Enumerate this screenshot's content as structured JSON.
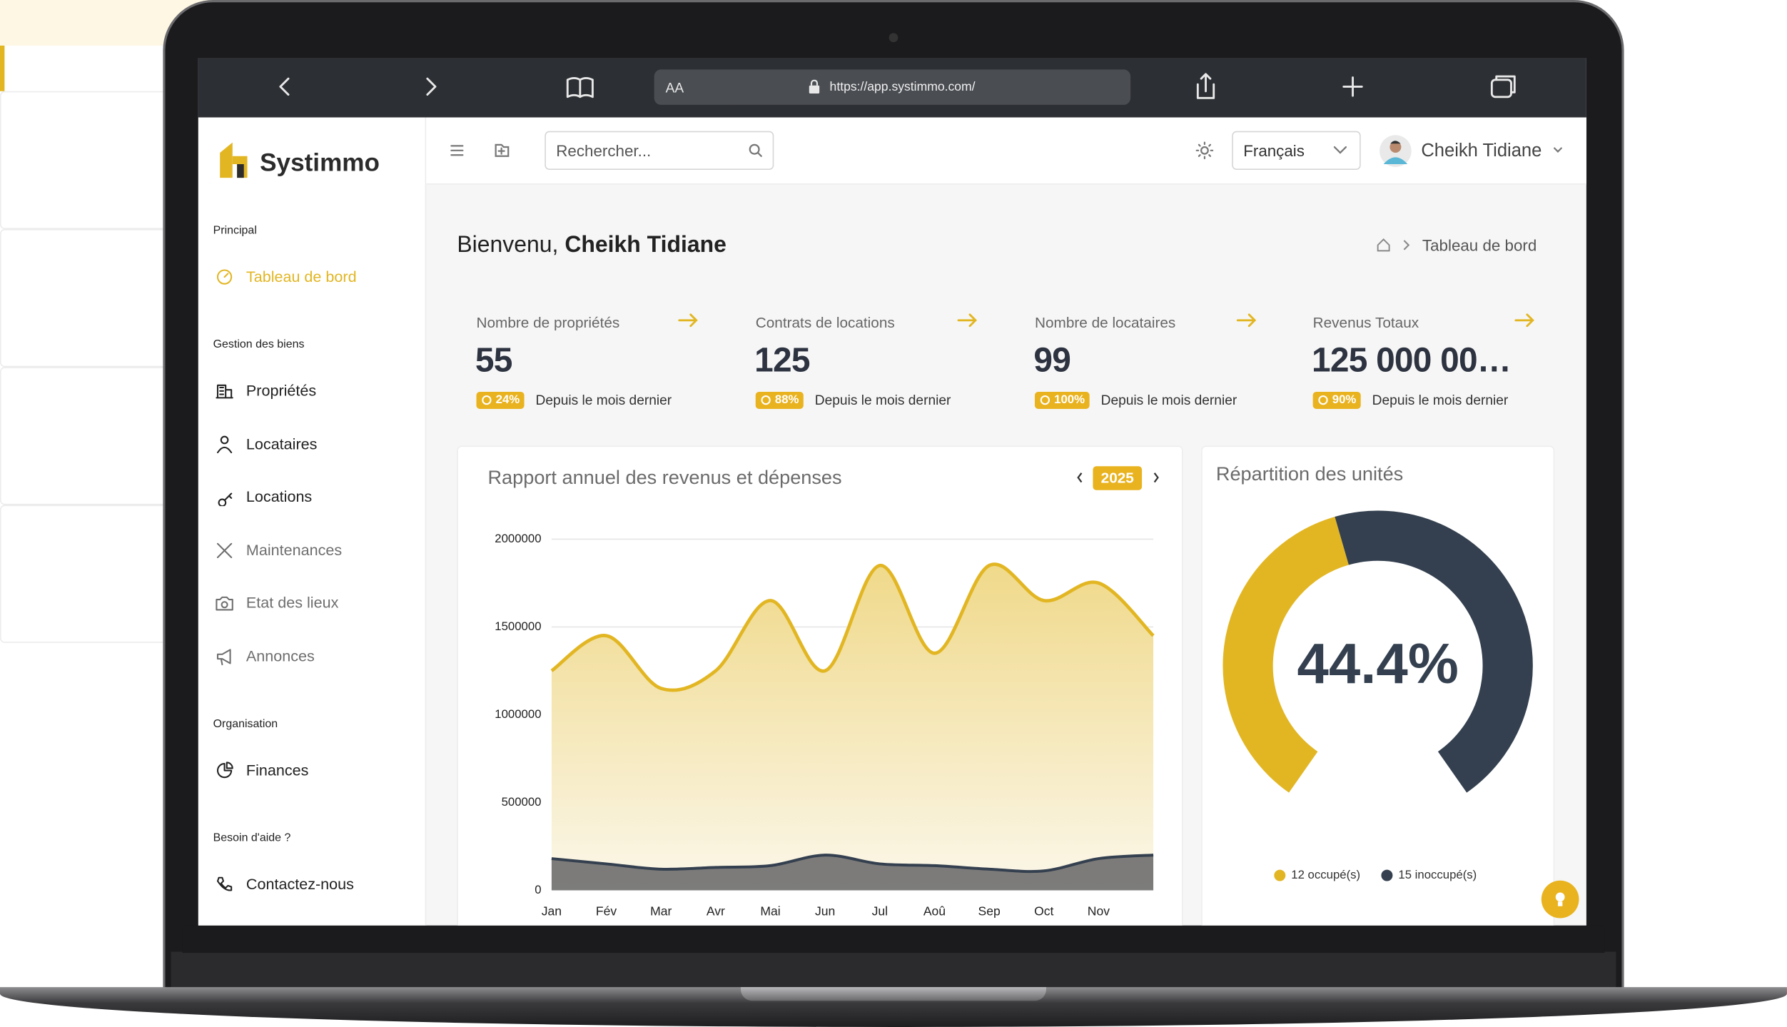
{
  "browser": {
    "reader": "AA",
    "url": "https://app.systimmo.com/"
  },
  "sidebar": {
    "brand": "Systimmo",
    "sections": [
      {
        "title": "Principal",
        "items": [
          "Tableau de bord"
        ]
      },
      {
        "title": "Gestion des biens",
        "items": [
          "Propriétés",
          "Locataires",
          "Locations",
          "Maintenances",
          "Etat des lieux",
          "Annonces"
        ]
      },
      {
        "title": "Organisation",
        "items": [
          "Finances"
        ]
      },
      {
        "title": "Besoin d'aide ?",
        "items": [
          "Contactez-nous"
        ]
      }
    ]
  },
  "header": {
    "search_placeholder": "Rechercher...",
    "language": "Français",
    "user": "Cheikh Tidiane"
  },
  "welcome": {
    "greeting": "Bienvenu,",
    "name": "Cheikh Tidiane"
  },
  "breadcrumb": "Tableau de bord",
  "stats": [
    {
      "label": "Nombre de propriétés",
      "value": "55",
      "change": "24%",
      "note": "Depuis le mois dernier"
    },
    {
      "label": "Contrats de locations",
      "value": "125",
      "change": "88%",
      "note": "Depuis le mois dernier"
    },
    {
      "label": "Nombre de locataires",
      "value": "99",
      "change": "100%",
      "note": "Depuis le mois dernier"
    },
    {
      "label": "Revenus Totaux",
      "value": "125 000 00…",
      "change": "90%",
      "note": "Depuis le mois dernier"
    }
  ],
  "chart_data": [
    {
      "type": "area",
      "title": "Rapport annuel des revenus et dépenses",
      "year": "2025",
      "categories": [
        "Jan",
        "Fév",
        "Mar",
        "Avr",
        "Mai",
        "Jun",
        "Jul",
        "Aoû",
        "Sep",
        "Oct",
        "Nov",
        null
      ],
      "series": [
        {
          "color": "#e2b623",
          "values": [
            1250000,
            1450000,
            1150000,
            1250000,
            1650000,
            1250000,
            1850000,
            1350000,
            1850000,
            1650000,
            1750000,
            1450000
          ]
        },
        {
          "color": "#34404f",
          "values": [
            180000,
            150000,
            120000,
            130000,
            140000,
            200000,
            150000,
            140000,
            120000,
            110000,
            180000,
            200000
          ]
        }
      ],
      "ylim": [
        0,
        2000000
      ],
      "yticks": [
        0,
        500000,
        1000000,
        1500000,
        2000000
      ],
      "grid": true
    },
    {
      "type": "doughnut",
      "title": "Répartition des unités",
      "center_label": "44.4%",
      "categories": [
        "12 occupé(s)",
        "15 inoccupé(s)"
      ],
      "values": [
        12,
        15
      ],
      "colors": [
        "#e2b623",
        "#34404f"
      ]
    }
  ]
}
